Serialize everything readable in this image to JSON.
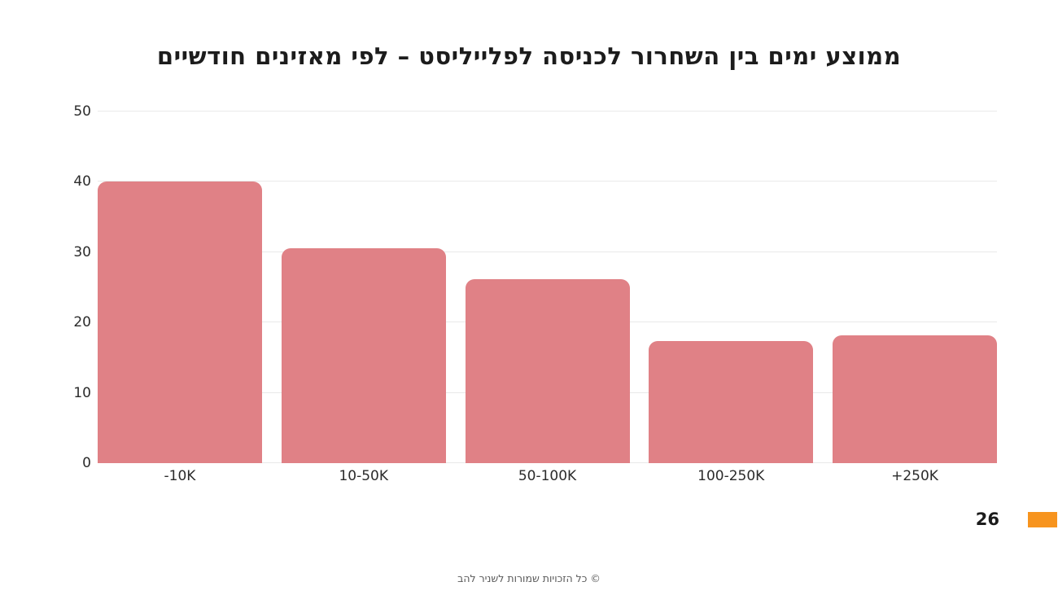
{
  "slide": {
    "page_number": "26",
    "footer": "© כל הזכויות שמורות לשניר להב",
    "accent_color": "#f7941e"
  },
  "chart_data": {
    "type": "bar",
    "title": "ממוצע ימים בין השחרור לכניסה לפלייליסט – לפי מאזינים חודשיים",
    "categories": [
      "-10K",
      "10-50K",
      "50-100K",
      "100-250K",
      "+250K"
    ],
    "values": [
      40,
      30.6,
      26.2,
      17.4,
      18.2
    ],
    "xlabel": "",
    "ylabel": "",
    "ylim": [
      0,
      50
    ],
    "y_ticks": [
      0,
      10,
      20,
      30,
      40,
      50
    ],
    "bar_color": "#e08186",
    "gridline_color": "#e9e9e9",
    "grid": true,
    "legend_position": "none"
  }
}
